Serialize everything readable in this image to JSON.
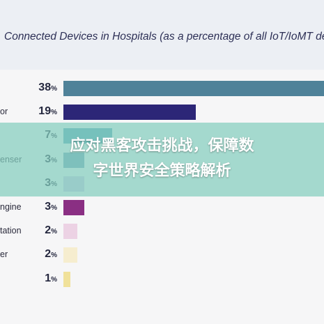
{
  "chart_data": {
    "type": "bar",
    "orientation": "horizontal",
    "title": "Connected Devices in Hospitals (as a percentage of all IoT/IoMT de",
    "categories": [
      "",
      "or",
      "",
      "enser",
      "",
      "ngine",
      "tation",
      "er",
      ""
    ],
    "values": [
      38,
      19,
      7,
      3,
      3,
      3,
      2,
      2,
      1
    ],
    "value_suffix": "%",
    "colors": [
      "#4f8299",
      "#2c2677",
      "#55a3b8",
      "#6f9fb8",
      "#d0cae6",
      "#8a2f83",
      "#ecd2e4",
      "#f6edcf",
      "#f0e19a"
    ],
    "xlim": [
      0,
      38
    ],
    "grid": false,
    "legend": "none"
  },
  "overlay": {
    "line1": "应对黑客攻击挑战，保障数",
    "line2": "字世界安全策略解析"
  }
}
